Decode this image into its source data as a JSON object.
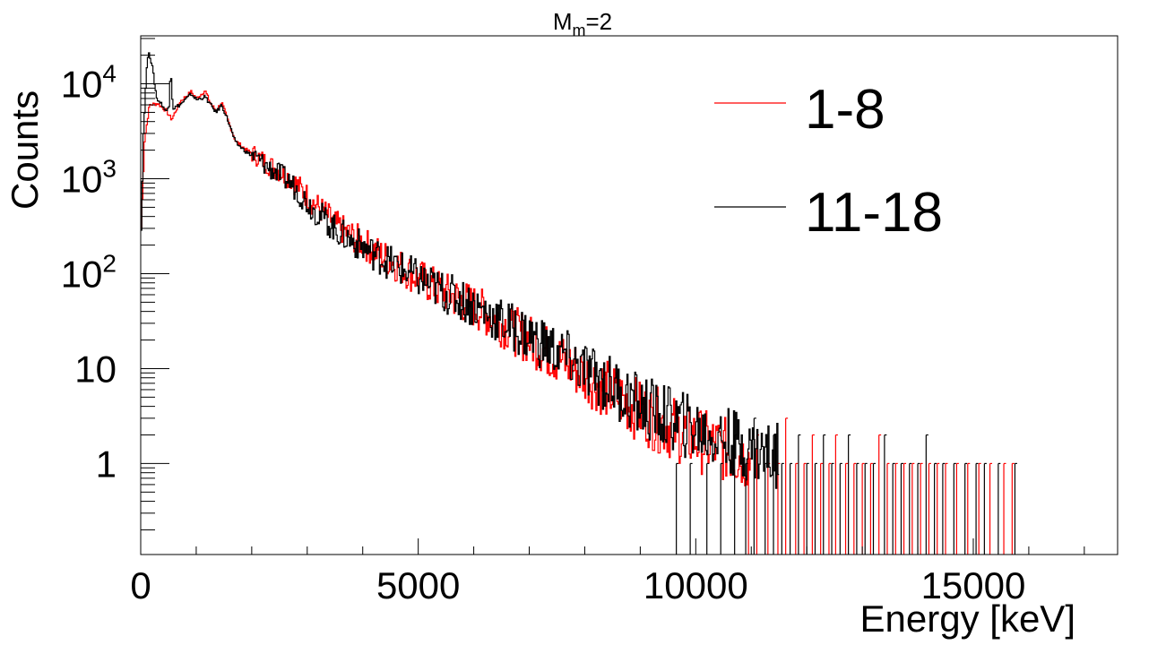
{
  "chart_data": {
    "type": "line",
    "title": "M_m=2",
    "title_main": "M",
    "title_sub": "m",
    "title_rest": "=2",
    "xlabel": "Energy [keV]",
    "ylabel": "Counts",
    "xlim": [
      0,
      17600
    ],
    "ylim": [
      0.11,
      32000
    ],
    "yscale": "log",
    "xticks": [
      0,
      5000,
      10000,
      15000
    ],
    "xtick_labels": [
      "0",
      "5000",
      "10000",
      "15000"
    ],
    "yticks": [
      10000,
      1000,
      100,
      10,
      1
    ],
    "ytick_labels": [
      {
        "base": "10",
        "exp": "4"
      },
      {
        "base": "10",
        "exp": "3"
      },
      {
        "base": "10",
        "exp": "2"
      },
      {
        "base": "10",
        "exp": ""
      },
      {
        "base": "1",
        "exp": ""
      }
    ],
    "legend_position": "top-right",
    "series": [
      {
        "name": "1-8",
        "color": "#ff0000",
        "points": [
          [
            0,
            300
          ],
          [
            60,
            2500
          ],
          [
            150,
            6000
          ],
          [
            300,
            6200
          ],
          [
            450,
            5200
          ],
          [
            550,
            4200
          ],
          [
            700,
            6500
          ],
          [
            900,
            8200
          ],
          [
            1000,
            7000
          ],
          [
            1150,
            8500
          ],
          [
            1250,
            6200
          ],
          [
            1350,
            5200
          ],
          [
            1450,
            6400
          ],
          [
            1550,
            4300
          ],
          [
            1700,
            2500
          ],
          [
            1900,
            2000
          ],
          [
            2100,
            1700
          ],
          [
            2300,
            1400
          ],
          [
            2500,
            1200
          ],
          [
            2700,
            1000
          ],
          [
            2900,
            750
          ],
          [
            3100,
            560
          ],
          [
            3300,
            440
          ],
          [
            3500,
            330
          ],
          [
            3700,
            270
          ],
          [
            4000,
            210
          ],
          [
            4300,
            160
          ],
          [
            4600,
            125
          ],
          [
            5000,
            90
          ],
          [
            5500,
            62
          ],
          [
            6000,
            45
          ],
          [
            6500,
            30
          ],
          [
            7000,
            20
          ],
          [
            7500,
            13
          ],
          [
            8000,
            8.5
          ],
          [
            8500,
            5.5
          ],
          [
            9000,
            3.5
          ],
          [
            9500,
            2.5
          ],
          [
            10000,
            1.8
          ],
          [
            10500,
            1.4
          ],
          [
            11000,
            1.1
          ]
        ],
        "tail": [
          [
            10950,
            1
          ],
          [
            11100,
            2
          ],
          [
            11300,
            1
          ],
          [
            11480,
            1
          ],
          [
            11620,
            3
          ],
          [
            11800,
            1
          ],
          [
            11950,
            1
          ],
          [
            12100,
            2
          ],
          [
            12250,
            1
          ],
          [
            12400,
            1
          ],
          [
            12520,
            2
          ],
          [
            12700,
            1
          ],
          [
            12850,
            1
          ],
          [
            13000,
            1
          ],
          [
            13150,
            1
          ],
          [
            13300,
            2
          ],
          [
            13450,
            1
          ],
          [
            13600,
            1
          ],
          [
            13750,
            1
          ],
          [
            13900,
            1
          ],
          [
            14050,
            1
          ],
          [
            14200,
            1
          ],
          [
            14350,
            1
          ],
          [
            14500,
            1
          ],
          [
            14700,
            1
          ],
          [
            14900,
            1
          ],
          [
            15100,
            1
          ],
          [
            15300,
            1
          ],
          [
            15550,
            1
          ],
          [
            15700,
            1
          ]
        ]
      },
      {
        "name": "11-18",
        "color": "#000000",
        "points": [
          [
            0,
            300
          ],
          [
            40,
            3000
          ],
          [
            100,
            15000
          ],
          [
            140,
            22000
          ],
          [
            200,
            15000
          ],
          [
            280,
            7000
          ],
          [
            380,
            6000
          ],
          [
            450,
            5000
          ],
          [
            500,
            6000
          ],
          [
            530,
            15000
          ],
          [
            570,
            5500
          ],
          [
            700,
            6000
          ],
          [
            900,
            7800
          ],
          [
            1000,
            6800
          ],
          [
            1150,
            7300
          ],
          [
            1250,
            6000
          ],
          [
            1350,
            5000
          ],
          [
            1450,
            6000
          ],
          [
            1550,
            4300
          ],
          [
            1700,
            2400
          ],
          [
            1900,
            1900
          ],
          [
            2100,
            1600
          ],
          [
            2300,
            1300
          ],
          [
            2500,
            1100
          ],
          [
            2700,
            900
          ],
          [
            2900,
            650
          ],
          [
            3100,
            480
          ],
          [
            3300,
            380
          ],
          [
            3500,
            290
          ],
          [
            3700,
            240
          ],
          [
            4000,
            190
          ],
          [
            4300,
            150
          ],
          [
            4600,
            120
          ],
          [
            5000,
            88
          ],
          [
            5500,
            62
          ],
          [
            6000,
            46
          ],
          [
            6500,
            31
          ],
          [
            7000,
            22
          ],
          [
            7500,
            15
          ],
          [
            8000,
            9.5
          ],
          [
            8500,
            6.5
          ],
          [
            9000,
            4
          ],
          [
            9500,
            3
          ],
          [
            10000,
            2.3
          ],
          [
            10500,
            1.8
          ],
          [
            11000,
            1.4
          ],
          [
            11500,
            1.2
          ]
        ],
        "tail": [
          [
            9650,
            1
          ],
          [
            9900,
            1
          ],
          [
            10200,
            1
          ],
          [
            10450,
            1
          ],
          [
            10700,
            2
          ],
          [
            10900,
            1
          ],
          [
            11050,
            3
          ],
          [
            11250,
            1
          ],
          [
            11400,
            2
          ],
          [
            11550,
            1
          ],
          [
            11700,
            1
          ],
          [
            11850,
            2
          ],
          [
            12000,
            1
          ],
          [
            12150,
            1
          ],
          [
            12300,
            2
          ],
          [
            12450,
            1
          ],
          [
            12600,
            1
          ],
          [
            12750,
            2
          ],
          [
            12900,
            1
          ],
          [
            13050,
            1
          ],
          [
            13200,
            1
          ],
          [
            13400,
            2
          ],
          [
            13550,
            1
          ],
          [
            13700,
            1
          ],
          [
            13850,
            1
          ],
          [
            14000,
            1
          ],
          [
            14150,
            2
          ],
          [
            14300,
            1
          ],
          [
            14450,
            1
          ],
          [
            14650,
            1
          ],
          [
            14850,
            1
          ],
          [
            15050,
            1
          ],
          [
            15200,
            1
          ],
          [
            15450,
            1
          ],
          [
            15750,
            1
          ]
        ]
      }
    ]
  }
}
